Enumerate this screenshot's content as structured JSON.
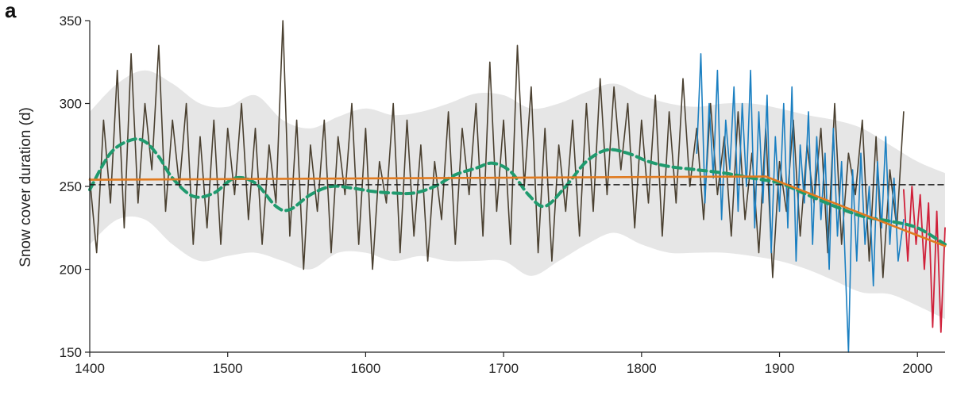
{
  "panel_label": "a",
  "chart_data": {
    "type": "line",
    "xlabel": "",
    "ylabel": "Snow cover duration (d)",
    "xlim": [
      1400,
      2020
    ],
    "ylim": [
      150,
      350
    ],
    "xticks": [
      1400,
      1500,
      1600,
      1700,
      1800,
      1900,
      2000
    ],
    "yticks": [
      150,
      200,
      250,
      300,
      350
    ],
    "grid": false,
    "colors": {
      "reconstruction": "#4a4030",
      "blue_series": "#1a7fc1",
      "red_series": "#d0213a",
      "smooth": "#1f9a6e",
      "trend": "#e07a1f",
      "mean": "#1a1a1a",
      "band": "#e6e6e6"
    },
    "band": {
      "x": [
        1400,
        1420,
        1440,
        1460,
        1480,
        1500,
        1520,
        1540,
        1560,
        1580,
        1600,
        1620,
        1640,
        1660,
        1680,
        1700,
        1720,
        1740,
        1760,
        1780,
        1800,
        1820,
        1840,
        1860,
        1880,
        1900,
        1920,
        1940,
        1960,
        1980,
        2000,
        2020
      ],
      "upper": [
        295,
        312,
        320,
        312,
        300,
        298,
        305,
        290,
        285,
        292,
        297,
        293,
        295,
        300,
        306,
        305,
        297,
        300,
        307,
        312,
        305,
        300,
        298,
        300,
        300,
        297,
        293,
        290,
        285,
        275,
        265,
        258
      ],
      "lower": [
        215,
        230,
        230,
        215,
        205,
        208,
        210,
        205,
        200,
        210,
        210,
        205,
        208,
        205,
        205,
        205,
        196,
        205,
        215,
        222,
        215,
        210,
        210,
        210,
        208,
        205,
        200,
        193,
        186,
        185,
        178,
        170
      ]
    },
    "series": [
      {
        "id": "reconstruction",
        "x": [
          1400,
          1405,
          1410,
          1415,
          1420,
          1425,
          1430,
          1435,
          1440,
          1445,
          1450,
          1455,
          1460,
          1465,
          1470,
          1475,
          1480,
          1485,
          1490,
          1495,
          1500,
          1505,
          1510,
          1515,
          1520,
          1525,
          1530,
          1535,
          1540,
          1545,
          1550,
          1555,
          1560,
          1565,
          1570,
          1575,
          1580,
          1585,
          1590,
          1595,
          1600,
          1605,
          1610,
          1615,
          1620,
          1625,
          1630,
          1635,
          1640,
          1645,
          1650,
          1655,
          1660,
          1665,
          1670,
          1675,
          1680,
          1685,
          1690,
          1695,
          1700,
          1705,
          1710,
          1715,
          1720,
          1725,
          1730,
          1735,
          1740,
          1745,
          1750,
          1755,
          1760,
          1765,
          1770,
          1775,
          1780,
          1785,
          1790,
          1795,
          1800,
          1805,
          1810,
          1815,
          1820,
          1825,
          1830,
          1835,
          1840,
          1845,
          1850,
          1855,
          1860,
          1865,
          1870,
          1875,
          1880,
          1885,
          1890,
          1895,
          1900,
          1905,
          1910,
          1915,
          1920,
          1925,
          1930,
          1935,
          1940,
          1945,
          1950,
          1955,
          1960,
          1965,
          1970,
          1975,
          1980,
          1985,
          1990
        ],
        "values": [
          255,
          210,
          290,
          240,
          320,
          225,
          330,
          240,
          300,
          260,
          335,
          235,
          290,
          250,
          300,
          215,
          280,
          225,
          290,
          215,
          285,
          245,
          300,
          230,
          285,
          215,
          275,
          240,
          350,
          220,
          290,
          200,
          275,
          235,
          290,
          210,
          280,
          245,
          300,
          215,
          285,
          200,
          265,
          240,
          300,
          210,
          290,
          220,
          275,
          205,
          265,
          230,
          295,
          215,
          285,
          245,
          300,
          220,
          325,
          235,
          290,
          215,
          335,
          250,
          310,
          210,
          285,
          205,
          275,
          235,
          290,
          220,
          300,
          235,
          315,
          245,
          310,
          260,
          300,
          225,
          290,
          240,
          305,
          220,
          295,
          240,
          315,
          250,
          285,
          230,
          300,
          245,
          280,
          220,
          295,
          230,
          270,
          210,
          285,
          195,
          265,
          235,
          290,
          220,
          275,
          240,
          285,
          210,
          300,
          215,
          270,
          245,
          290,
          205,
          280,
          195,
          260,
          225,
          295
        ]
      },
      {
        "id": "blue_series",
        "x": [
          1840,
          1843,
          1846,
          1849,
          1852,
          1855,
          1858,
          1861,
          1864,
          1867,
          1870,
          1873,
          1876,
          1879,
          1882,
          1885,
          1888,
          1891,
          1894,
          1897,
          1900,
          1903,
          1906,
          1909,
          1912,
          1915,
          1918,
          1921,
          1924,
          1927,
          1930,
          1933,
          1936,
          1939,
          1942,
          1945,
          1948,
          1950,
          1953,
          1956,
          1959,
          1962,
          1965,
          1968,
          1971,
          1974,
          1977,
          1980,
          1983,
          1986,
          1990
        ],
        "values": [
          270,
          330,
          240,
          300,
          255,
          320,
          230,
          290,
          260,
          310,
          235,
          300,
          250,
          320,
          225,
          295,
          240,
          305,
          210,
          280,
          235,
          300,
          225,
          310,
          205,
          275,
          240,
          295,
          215,
          280,
          230,
          270,
          200,
          285,
          220,
          265,
          195,
          150,
          260,
          205,
          270,
          215,
          250,
          190,
          265,
          225,
          280,
          215,
          255,
          205,
          230
        ]
      },
      {
        "id": "red_series",
        "x": [
          1990,
          1993,
          1996,
          1999,
          2002,
          2005,
          2008,
          2011,
          2014,
          2017,
          2020
        ],
        "values": [
          248,
          205,
          250,
          215,
          245,
          200,
          240,
          165,
          235,
          162,
          225
        ]
      },
      {
        "id": "smooth",
        "x": [
          1400,
          1415,
          1430,
          1440,
          1450,
          1460,
          1475,
          1490,
          1505,
          1520,
          1535,
          1545,
          1560,
          1575,
          1590,
          1605,
          1620,
          1635,
          1650,
          1665,
          1680,
          1692,
          1705,
          1718,
          1730,
          1745,
          1760,
          1775,
          1790,
          1805,
          1820,
          1840,
          1860,
          1880,
          1900,
          1920,
          1940,
          1960,
          1980,
          2000,
          2020
        ],
        "values": [
          248,
          270,
          278,
          277,
          268,
          255,
          244,
          246,
          255,
          252,
          238,
          236,
          245,
          250,
          249,
          247,
          246,
          246,
          250,
          257,
          261,
          264,
          259,
          245,
          238,
          250,
          265,
          272,
          270,
          265,
          262,
          260,
          258,
          255,
          252,
          245,
          238,
          232,
          229,
          225,
          215
        ]
      },
      {
        "id": "trend",
        "x": [
          1400,
          1890,
          2020
        ],
        "values": [
          254,
          256,
          214
        ]
      },
      {
        "id": "mean",
        "x": [
          1400,
          2020
        ],
        "values": [
          251,
          251
        ]
      }
    ]
  }
}
